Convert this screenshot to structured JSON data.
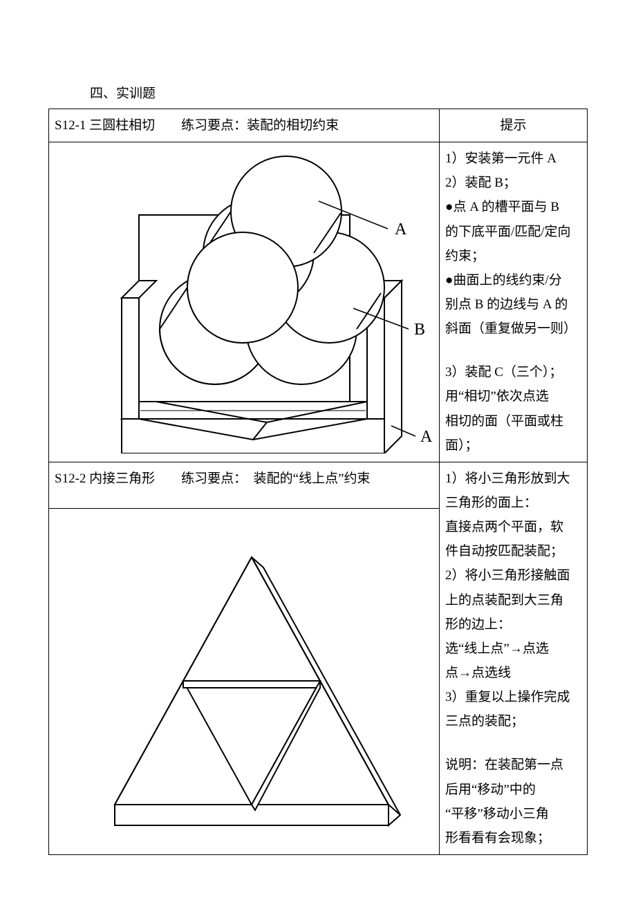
{
  "section_title": "四、实训题",
  "row1": {
    "left_header": "S12-1 三圆柱相切  练习要点：装配的相切约束",
    "right_header": "提示",
    "labels": {
      "A_top": "A",
      "B": "B",
      "A_bottom": "A"
    },
    "colors": {
      "stroke": "#000000",
      "fill": "#ffffff",
      "text": "#000000"
    },
    "hints": [
      "1）安装第一元件 A",
      "2）装配 B；",
      "●点 A 的槽平面与 B",
      "的下底平面/匹配/定向",
      "约束；",
      "●曲面上的线约束/分",
      "别点 B 的边线与 A 的",
      "斜面（重复做另一则）",
      "",
      "3）装配 C（三个）；",
      "用“相切”依次点选",
      "相切的面（平面或柱",
      "面）；"
    ]
  },
  "row2": {
    "left_header": "S12-2 内接三角形  练习要点： 装配的“线上点”约束",
    "hints": [
      "1）将小三角形放到大",
      "三角形的面上：",
      "直接点两个平面，软",
      "件自动按匹配装配；",
      "2）将小三角形接触面",
      "上的点装配到大三角",
      "形的边上：",
      "选“线上点”→点选",
      "点→点选线",
      "3）重复以上操作完成",
      "三点的装配；",
      "",
      "说明：在装配第一点",
      "后用“移动”中的",
      "“平移”移动小三角",
      "形看看有会现象；"
    ],
    "colors": {
      "stroke": "#000000",
      "fill_light": "#ffffff",
      "fill_none": "none"
    }
  }
}
